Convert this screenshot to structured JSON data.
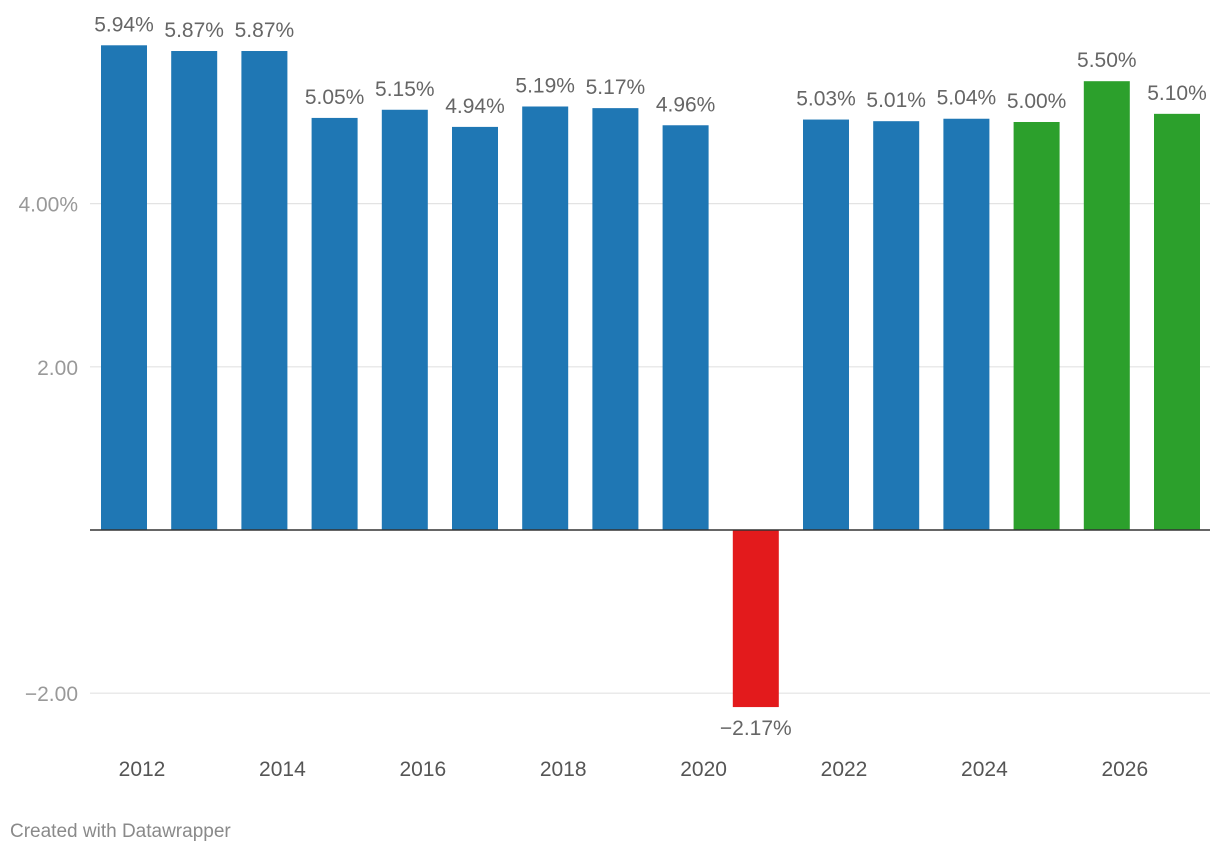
{
  "chart_data": {
    "type": "bar",
    "title": "",
    "xlabel": "",
    "ylabel": "",
    "ylim": [
      -2.5,
      6.0
    ],
    "yticks": [
      {
        "value": 4,
        "label": "4.00%"
      },
      {
        "value": 2,
        "label": "2.00"
      },
      {
        "value": -2,
        "label": "−2.00"
      }
    ],
    "xtick_labels": [
      "2012",
      "2014",
      "2016",
      "2018",
      "2020",
      "2022",
      "2024",
      "2026"
    ],
    "categories": [
      "2012",
      "2013",
      "2014",
      "2015",
      "2016",
      "2017",
      "2018",
      "2019",
      "2020",
      "2021",
      "2022",
      "2023",
      "2024",
      "2025",
      "2026",
      "2027"
    ],
    "values": [
      5.94,
      5.87,
      5.87,
      5.05,
      5.15,
      4.94,
      5.19,
      5.17,
      4.96,
      -2.17,
      5.03,
      5.01,
      5.04,
      5.0,
      5.5,
      5.1
    ],
    "value_labels": [
      "5.94%",
      "5.87%",
      "5.87%",
      "5.05%",
      "5.15%",
      "4.94%",
      "5.19%",
      "5.17%",
      "4.96%",
      "−2.17%",
      "5.03%",
      "5.01%",
      "5.04%",
      "5.00%",
      "5.50%",
      "5.10%"
    ],
    "bar_colors": [
      "#1f77b4",
      "#1f77b4",
      "#1f77b4",
      "#1f77b4",
      "#1f77b4",
      "#1f77b4",
      "#1f77b4",
      "#1f77b4",
      "#1f77b4",
      "#e31a1c",
      "#1f77b4",
      "#1f77b4",
      "#1f77b4",
      "#2ca02c",
      "#2ca02c",
      "#2ca02c"
    ],
    "grid": true
  },
  "footer": {
    "credit": "Created with Datawrapper"
  }
}
